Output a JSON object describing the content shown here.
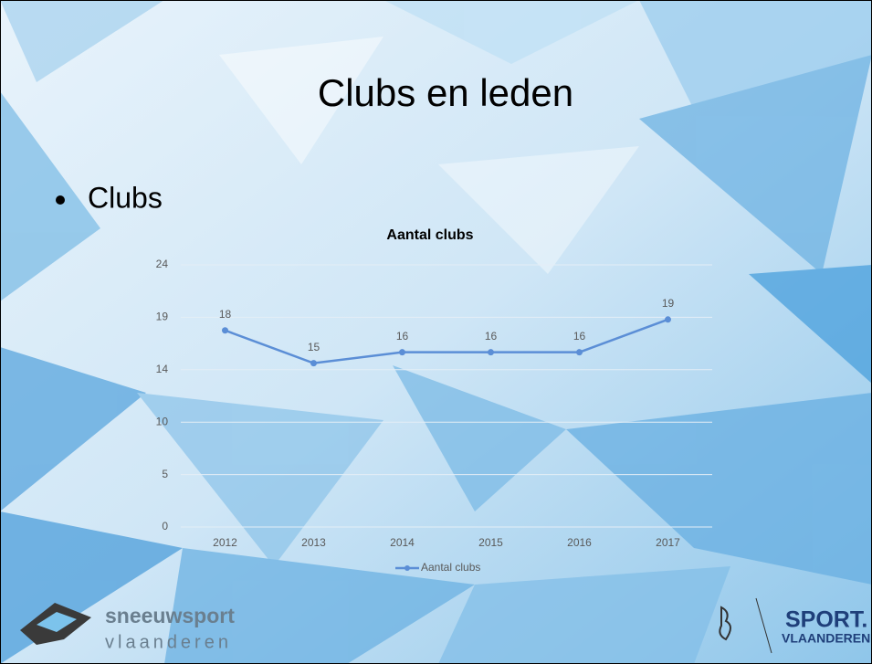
{
  "slide": {
    "title": "Clubs en leden",
    "bullet": "Clubs"
  },
  "logos": {
    "left": [
      "sneeuwsport",
      "vlaanderen"
    ],
    "right": [
      "SPORT.",
      "VLAANDEREN"
    ]
  },
  "chart_data": {
    "type": "line",
    "title": "Aantal clubs",
    "categories": [
      "2012",
      "2013",
      "2014",
      "2015",
      "2016",
      "2017"
    ],
    "series": [
      {
        "name": "Aantal clubs",
        "color": "#5b8ed6",
        "values": [
          18,
          15,
          16,
          16,
          16,
          19
        ]
      }
    ],
    "ylim": [
      0,
      24
    ],
    "yticks": [
      0,
      {
        "value": 4.8,
        "label": "5"
      },
      {
        "value": 9.6,
        "label": "10"
      },
      {
        "value": 14.4,
        "label": "14"
      },
      {
        "value": 19.2,
        "label": "19"
      },
      24
    ],
    "grid": true,
    "legend": "bottom"
  }
}
